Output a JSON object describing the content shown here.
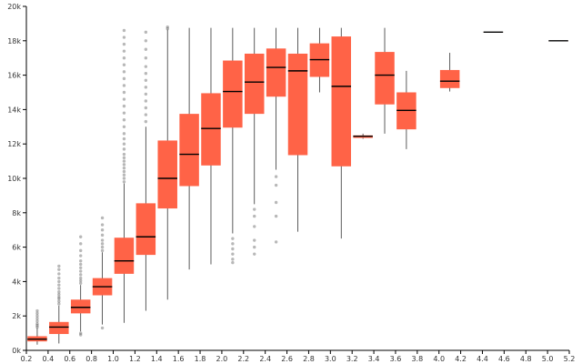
{
  "chart_data": {
    "type": "box",
    "title": "",
    "xlabel": "",
    "ylabel": "",
    "xlim": [
      0.2,
      5.2
    ],
    "ylim": [
      0,
      20000
    ],
    "x_ticks": [
      {
        "value": 0.2,
        "label": "0.2"
      },
      {
        "value": 0.4,
        "label": "0.4"
      },
      {
        "value": 0.6,
        "label": "0.6"
      },
      {
        "value": 0.8,
        "label": "0.8"
      },
      {
        "value": 1.0,
        "label": "1.0"
      },
      {
        "value": 1.2,
        "label": "1.2"
      },
      {
        "value": 1.4,
        "label": "1.4"
      },
      {
        "value": 1.6,
        "label": "1.6"
      },
      {
        "value": 1.8,
        "label": "1.8"
      },
      {
        "value": 2.0,
        "label": "2.0"
      },
      {
        "value": 2.2,
        "label": "2.2"
      },
      {
        "value": 2.4,
        "label": "2.4"
      },
      {
        "value": 2.6,
        "label": "2.6"
      },
      {
        "value": 2.8,
        "label": "2.8"
      },
      {
        "value": 3.0,
        "label": "3.0"
      },
      {
        "value": 3.2,
        "label": "3.2"
      },
      {
        "value": 3.4,
        "label": "3.4"
      },
      {
        "value": 3.6,
        "label": "3.6"
      },
      {
        "value": 3.8,
        "label": "3.8"
      },
      {
        "value": 4.0,
        "label": "4.0"
      },
      {
        "value": 4.2,
        "label": "4.2"
      },
      {
        "value": 4.4,
        "label": "4.4"
      },
      {
        "value": 4.6,
        "label": "4.6"
      },
      {
        "value": 4.8,
        "label": "4.8"
      },
      {
        "value": 5.0,
        "label": "5.0"
      },
      {
        "value": 5.2,
        "label": "5.2"
      }
    ],
    "y_ticks": [
      {
        "value": 0,
        "label": "0k"
      },
      {
        "value": 2000,
        "label": "2k"
      },
      {
        "value": 4000,
        "label": "4k"
      },
      {
        "value": 6000,
        "label": "6k"
      },
      {
        "value": 8000,
        "label": "8k"
      },
      {
        "value": 10000,
        "label": "10k"
      },
      {
        "value": 12000,
        "label": "12k"
      },
      {
        "value": 14000,
        "label": "14k"
      },
      {
        "value": 16000,
        "label": "16k"
      },
      {
        "value": 18000,
        "label": "18k"
      },
      {
        "value": 20000,
        "label": "20k"
      }
    ],
    "box_width": 0.18,
    "box_color": "#ff6347",
    "median_color": "#000000",
    "whisker_color": "#333333",
    "outlier_color": "#333333",
    "boxes": [
      {
        "x": 0.3,
        "min": 330,
        "q1": 520,
        "median": 650,
        "q3": 820,
        "max": 1300,
        "outliers": [
          1350,
          1450,
          1550,
          1700,
          1850,
          2000,
          2150,
          2300
        ]
      },
      {
        "x": 0.5,
        "min": 400,
        "q1": 950,
        "median": 1350,
        "q3": 1650,
        "max": 2600,
        "outliers": [
          2700,
          2850,
          3000,
          3100,
          3250,
          3400,
          3600,
          3800,
          4000,
          4200,
          4450,
          4700,
          4900
        ]
      },
      {
        "x": 0.7,
        "min": 1100,
        "q1": 2150,
        "median": 2500,
        "q3": 2950,
        "max": 3800,
        "outliers": [
          900,
          1000,
          3900,
          4050,
          4200,
          4400,
          4600,
          4800,
          5000,
          5200,
          5500,
          5800,
          6200,
          6600
        ]
      },
      {
        "x": 0.9,
        "min": 1500,
        "q1": 3200,
        "median": 3700,
        "q3": 4200,
        "max": 5700,
        "outliers": [
          1300,
          5800,
          6000,
          6200,
          6400,
          6700,
          7000,
          7300,
          7700
        ]
      },
      {
        "x": 1.1,
        "min": 1600,
        "q1": 4450,
        "median": 5200,
        "q3": 6550,
        "max": 9700,
        "outliers": [
          9800,
          10000,
          10200,
          10400,
          10600,
          10800,
          11000,
          11200,
          11400,
          11700,
          12000,
          12300,
          12600,
          13000,
          13400,
          13800,
          14200,
          14600,
          15000,
          15400,
          15800,
          16200,
          16600,
          17000,
          17400,
          17800,
          18200,
          18600
        ]
      },
      {
        "x": 1.3,
        "min": 2300,
        "q1": 5550,
        "median": 6600,
        "q3": 8550,
        "max": 13000,
        "outliers": [
          13300,
          13700,
          14100,
          14500,
          14900,
          15300,
          15700,
          16100,
          16500,
          17000,
          17500,
          18000,
          18500
        ]
      },
      {
        "x": 1.5,
        "min": 2950,
        "q1": 8250,
        "median": 10000,
        "q3": 12200,
        "max": 18650,
        "outliers": [
          18700,
          18800
        ]
      },
      {
        "x": 1.7,
        "min": 4700,
        "q1": 9550,
        "median": 11400,
        "q3": 13750,
        "max": 18750,
        "outliers": []
      },
      {
        "x": 1.9,
        "min": 5000,
        "q1": 10750,
        "median": 12900,
        "q3": 14950,
        "max": 18750,
        "outliers": []
      },
      {
        "x": 2.1,
        "min": 6800,
        "q1": 12950,
        "median": 15050,
        "q3": 16850,
        "max": 18750,
        "outliers": [
          5100,
          5300,
          5600,
          5900,
          6200,
          6500
        ]
      },
      {
        "x": 2.3,
        "min": 8500,
        "q1": 13750,
        "median": 15600,
        "q3": 17250,
        "max": 18750,
        "outliers": [
          5600,
          6000,
          6400,
          7200,
          7800,
          8200
        ]
      },
      {
        "x": 2.5,
        "min": 10500,
        "q1": 14750,
        "median": 16450,
        "q3": 17550,
        "max": 18750,
        "outliers": [
          6300,
          7800,
          8600,
          9600,
          10100
        ]
      },
      {
        "x": 2.7,
        "min": 6900,
        "q1": 11350,
        "median": 16250,
        "q3": 17250,
        "max": 18750,
        "outliers": []
      },
      {
        "x": 2.9,
        "min": 15000,
        "q1": 15900,
        "median": 16900,
        "q3": 17850,
        "max": 18750,
        "outliers": []
      },
      {
        "x": 3.1,
        "min": 6500,
        "q1": 10700,
        "median": 15350,
        "q3": 18250,
        "max": 18750,
        "outliers": []
      },
      {
        "x": 3.3,
        "min": 12300,
        "q1": 12350,
        "median": 12450,
        "q3": 12500,
        "max": 12600,
        "outliers": []
      },
      {
        "x": 3.5,
        "min": 12600,
        "q1": 14300,
        "median": 16000,
        "q3": 17350,
        "max": 18750,
        "outliers": []
      },
      {
        "x": 3.7,
        "min": 11700,
        "q1": 12850,
        "median": 13950,
        "q3": 15000,
        "max": 16250,
        "outliers": []
      },
      {
        "x": 4.1,
        "min": 15050,
        "q1": 15250,
        "median": 15650,
        "q3": 16300,
        "max": 17300,
        "outliers": []
      },
      {
        "x": 4.5,
        "min": 18500,
        "q1": 18500,
        "median": 18500,
        "q3": 18500,
        "max": 18500,
        "outliers": []
      },
      {
        "x": 5.1,
        "min": 18000,
        "q1": 18000,
        "median": 18000,
        "q3": 18000,
        "max": 18000,
        "outliers": []
      }
    ]
  }
}
